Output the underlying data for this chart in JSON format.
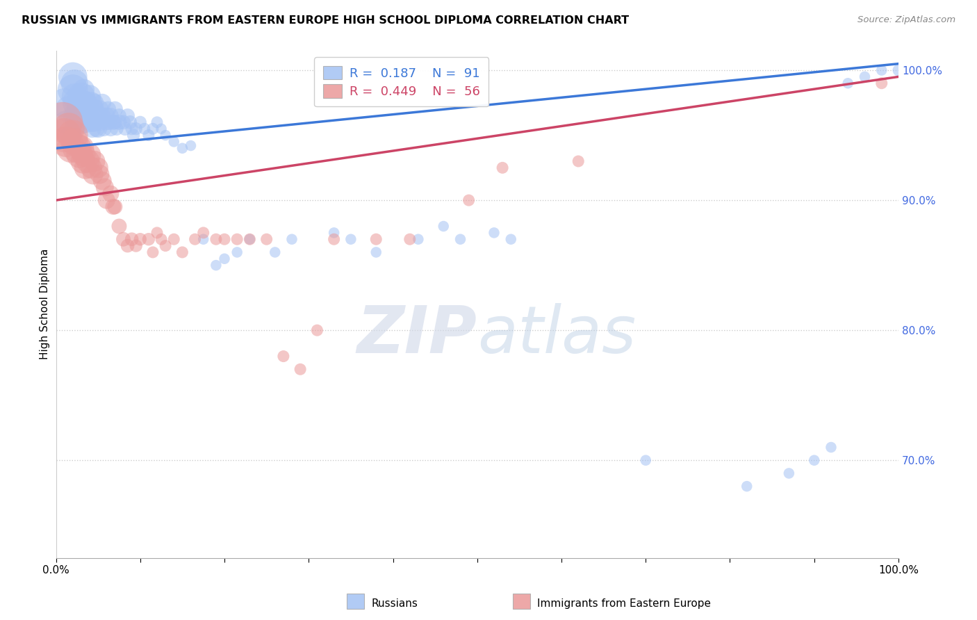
{
  "title": "RUSSIAN VS IMMIGRANTS FROM EASTERN EUROPE HIGH SCHOOL DIPLOMA CORRELATION CHART",
  "source": "Source: ZipAtlas.com",
  "ylabel": "High School Diploma",
  "watermark_zip": "ZIP",
  "watermark_atlas": "atlas",
  "blue_R": 0.187,
  "blue_N": 91,
  "pink_R": 0.449,
  "pink_N": 56,
  "blue_color": "#a4c2f4",
  "pink_color": "#ea9999",
  "blue_line_color": "#3c78d8",
  "pink_line_color": "#cc4466",
  "legend_label_blue": "Russians",
  "legend_label_pink": "Immigrants from Eastern Europe",
  "xlim": [
    0.0,
    1.0
  ],
  "ylim": [
    0.625,
    1.015
  ],
  "yticks": [
    0.7,
    0.8,
    0.9,
    1.0
  ],
  "ytick_labels": [
    "70.0%",
    "80.0%",
    "90.0%",
    "100.0%"
  ],
  "blue_x": [
    0.01,
    0.012,
    0.015,
    0.018,
    0.02,
    0.02,
    0.022,
    0.022,
    0.025,
    0.025,
    0.025,
    0.028,
    0.03,
    0.03,
    0.03,
    0.032,
    0.033,
    0.033,
    0.035,
    0.035,
    0.036,
    0.038,
    0.04,
    0.04,
    0.042,
    0.042,
    0.043,
    0.045,
    0.045,
    0.046,
    0.048,
    0.05,
    0.05,
    0.052,
    0.053,
    0.055,
    0.055,
    0.057,
    0.06,
    0.06,
    0.062,
    0.063,
    0.065,
    0.065,
    0.068,
    0.07,
    0.07,
    0.072,
    0.075,
    0.075,
    0.08,
    0.082,
    0.085,
    0.088,
    0.09,
    0.092,
    0.095,
    0.1,
    0.105,
    0.11,
    0.115,
    0.12,
    0.125,
    0.13,
    0.14,
    0.15,
    0.16,
    0.175,
    0.19,
    0.2,
    0.215,
    0.23,
    0.26,
    0.28,
    0.33,
    0.35,
    0.38,
    0.43,
    0.46,
    0.48,
    0.52,
    0.54,
    0.7,
    0.82,
    0.87,
    0.9,
    0.92,
    0.94,
    0.96,
    0.98,
    1.0
  ],
  "blue_y": [
    0.975,
    0.96,
    0.97,
    0.95,
    0.985,
    0.995,
    0.99,
    0.98,
    0.975,
    0.965,
    0.96,
    0.97,
    0.98,
    0.97,
    0.96,
    0.975,
    0.965,
    0.985,
    0.975,
    0.96,
    0.97,
    0.965,
    0.98,
    0.97,
    0.975,
    0.96,
    0.955,
    0.97,
    0.96,
    0.975,
    0.955,
    0.965,
    0.955,
    0.97,
    0.96,
    0.975,
    0.965,
    0.955,
    0.965,
    0.96,
    0.97,
    0.96,
    0.965,
    0.955,
    0.96,
    0.97,
    0.96,
    0.955,
    0.96,
    0.965,
    0.96,
    0.955,
    0.965,
    0.96,
    0.955,
    0.95,
    0.955,
    0.96,
    0.955,
    0.95,
    0.955,
    0.96,
    0.955,
    0.95,
    0.945,
    0.94,
    0.942,
    0.87,
    0.85,
    0.855,
    0.86,
    0.87,
    0.86,
    0.87,
    0.875,
    0.87,
    0.86,
    0.87,
    0.88,
    0.87,
    0.875,
    0.87,
    0.7,
    0.68,
    0.69,
    0.7,
    0.71,
    0.99,
    0.995,
    1.0,
    1.0
  ],
  "blue_sizes": [
    180,
    120,
    150,
    100,
    200,
    180,
    160,
    140,
    180,
    160,
    120,
    140,
    160,
    140,
    120,
    130,
    110,
    100,
    120,
    100,
    90,
    100,
    110,
    90,
    100,
    80,
    70,
    90,
    80,
    70,
    60,
    80,
    70,
    70,
    60,
    70,
    60,
    50,
    60,
    55,
    55,
    50,
    55,
    50,
    50,
    55,
    45,
    40,
    50,
    45,
    45,
    40,
    45,
    40,
    35,
    35,
    35,
    35,
    30,
    30,
    30,
    30,
    25,
    25,
    25,
    25,
    25,
    25,
    25,
    25,
    25,
    25,
    25,
    25,
    25,
    25,
    25,
    25,
    25,
    25,
    25,
    25,
    25,
    25,
    25,
    25,
    25,
    25,
    25,
    25,
    30
  ],
  "pink_x": [
    0.008,
    0.01,
    0.012,
    0.015,
    0.018,
    0.02,
    0.022,
    0.025,
    0.028,
    0.03,
    0.032,
    0.033,
    0.035,
    0.038,
    0.04,
    0.042,
    0.044,
    0.046,
    0.05,
    0.052,
    0.055,
    0.058,
    0.06,
    0.065,
    0.068,
    0.07,
    0.075,
    0.08,
    0.085,
    0.09,
    0.095,
    0.1,
    0.11,
    0.115,
    0.12,
    0.125,
    0.13,
    0.14,
    0.15,
    0.165,
    0.175,
    0.19,
    0.2,
    0.215,
    0.23,
    0.25,
    0.27,
    0.29,
    0.31,
    0.33,
    0.38,
    0.42,
    0.49,
    0.53,
    0.62,
    0.98
  ],
  "pink_y": [
    0.96,
    0.95,
    0.945,
    0.955,
    0.94,
    0.95,
    0.945,
    0.94,
    0.935,
    0.94,
    0.93,
    0.935,
    0.925,
    0.93,
    0.935,
    0.925,
    0.92,
    0.93,
    0.925,
    0.92,
    0.915,
    0.91,
    0.9,
    0.905,
    0.895,
    0.895,
    0.88,
    0.87,
    0.865,
    0.87,
    0.865,
    0.87,
    0.87,
    0.86,
    0.875,
    0.87,
    0.865,
    0.87,
    0.86,
    0.87,
    0.875,
    0.87,
    0.87,
    0.87,
    0.87,
    0.87,
    0.78,
    0.77,
    0.8,
    0.87,
    0.87,
    0.87,
    0.9,
    0.925,
    0.93,
    0.99
  ],
  "pink_sizes": [
    350,
    250,
    200,
    220,
    180,
    200,
    160,
    180,
    150,
    140,
    130,
    120,
    110,
    120,
    110,
    100,
    90,
    95,
    90,
    80,
    75,
    70,
    65,
    60,
    55,
    50,
    50,
    45,
    40,
    40,
    35,
    35,
    35,
    30,
    30,
    30,
    30,
    30,
    30,
    30,
    30,
    30,
    30,
    30,
    30,
    30,
    30,
    30,
    30,
    30,
    30,
    30,
    30,
    30,
    30,
    30
  ]
}
